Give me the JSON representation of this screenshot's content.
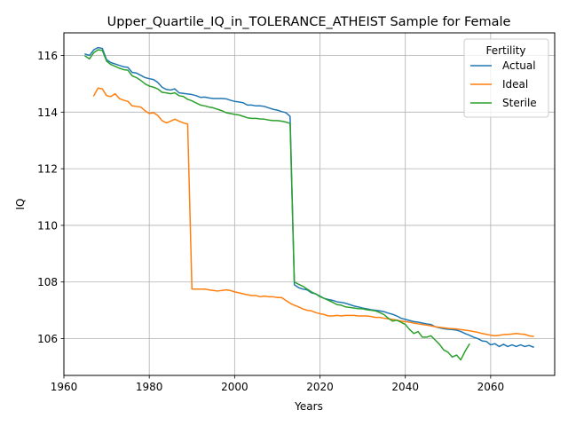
{
  "chart_data": {
    "type": "line",
    "title": "Upper_Quartile_IQ_in_TOLERANCE_ATHEIST Sample for Female",
    "xlabel": "Years",
    "ylabel": "IQ",
    "xlim": [
      1960,
      2075
    ],
    "ylim": [
      104.7,
      116.8
    ],
    "xticks": [
      1960,
      1980,
      2000,
      2020,
      2040,
      2060
    ],
    "yticks": [
      106,
      108,
      110,
      112,
      114,
      116
    ],
    "grid": true,
    "legend": {
      "title": "Fertility",
      "placement": "top-right"
    },
    "series": [
      {
        "name": "Actual",
        "color": "#1f77b4",
        "points": [
          [
            1965,
            116.05
          ],
          [
            1966,
            116.0
          ],
          [
            1967,
            116.2
          ],
          [
            1968,
            116.28
          ],
          [
            1969,
            116.25
          ],
          [
            1970,
            115.85
          ],
          [
            1971,
            115.75
          ],
          [
            1972,
            115.7
          ],
          [
            1973,
            115.65
          ],
          [
            1974,
            115.6
          ],
          [
            1975,
            115.58
          ],
          [
            1976,
            115.4
          ],
          [
            1977,
            115.38
          ],
          [
            1978,
            115.3
          ],
          [
            1979,
            115.22
          ],
          [
            1980,
            115.18
          ],
          [
            1981,
            115.15
          ],
          [
            1982,
            115.05
          ],
          [
            1983,
            114.88
          ],
          [
            1984,
            114.8
          ],
          [
            1985,
            114.78
          ],
          [
            1986,
            114.82
          ],
          [
            1987,
            114.68
          ],
          [
            1988,
            114.66
          ],
          [
            1989,
            114.64
          ],
          [
            1990,
            114.62
          ],
          [
            1991,
            114.58
          ],
          [
            1992,
            114.52
          ],
          [
            1993,
            114.53
          ],
          [
            1994,
            114.5
          ],
          [
            1995,
            114.48
          ],
          [
            1996,
            114.48
          ],
          [
            1997,
            114.48
          ],
          [
            1998,
            114.47
          ],
          [
            1999,
            114.42
          ],
          [
            2000,
            114.38
          ],
          [
            2001,
            114.36
          ],
          [
            2002,
            114.33
          ],
          [
            2003,
            114.25
          ],
          [
            2004,
            114.25
          ],
          [
            2005,
            114.22
          ],
          [
            2006,
            114.22
          ],
          [
            2007,
            114.2
          ],
          [
            2008,
            114.15
          ],
          [
            2009,
            114.1
          ],
          [
            2010,
            114.07
          ],
          [
            2011,
            114.02
          ],
          [
            2012,
            113.98
          ],
          [
            2013,
            113.85
          ],
          [
            2014,
            107.9
          ],
          [
            2015,
            107.8
          ],
          [
            2016,
            107.75
          ],
          [
            2017,
            107.72
          ],
          [
            2018,
            107.62
          ],
          [
            2019,
            107.58
          ],
          [
            2020,
            107.5
          ],
          [
            2021,
            107.42
          ],
          [
            2022,
            107.38
          ],
          [
            2023,
            107.35
          ],
          [
            2024,
            107.3
          ],
          [
            2025,
            107.28
          ],
          [
            2026,
            107.25
          ],
          [
            2027,
            107.2
          ],
          [
            2028,
            107.15
          ],
          [
            2029,
            107.12
          ],
          [
            2030,
            107.08
          ],
          [
            2031,
            107.05
          ],
          [
            2032,
            107.02
          ],
          [
            2033,
            107.0
          ],
          [
            2034,
            106.98
          ],
          [
            2035,
            106.95
          ],
          [
            2036,
            106.9
          ],
          [
            2037,
            106.86
          ],
          [
            2038,
            106.8
          ],
          [
            2039,
            106.72
          ],
          [
            2040,
            106.68
          ],
          [
            2041,
            106.64
          ],
          [
            2042,
            106.6
          ],
          [
            2043,
            106.58
          ],
          [
            2044,
            106.55
          ],
          [
            2045,
            106.52
          ],
          [
            2046,
            106.5
          ],
          [
            2047,
            106.42
          ],
          [
            2048,
            106.38
          ],
          [
            2049,
            106.35
          ],
          [
            2050,
            106.33
          ],
          [
            2051,
            106.32
          ],
          [
            2052,
            106.3
          ],
          [
            2053,
            106.25
          ],
          [
            2054,
            106.18
          ],
          [
            2055,
            106.12
          ],
          [
            2056,
            106.05
          ],
          [
            2057,
            106.0
          ],
          [
            2058,
            105.92
          ],
          [
            2059,
            105.9
          ],
          [
            2060,
            105.78
          ],
          [
            2061,
            105.82
          ],
          [
            2062,
            105.72
          ],
          [
            2063,
            105.8
          ],
          [
            2064,
            105.72
          ],
          [
            2065,
            105.78
          ],
          [
            2066,
            105.72
          ],
          [
            2067,
            105.78
          ],
          [
            2068,
            105.72
          ],
          [
            2069,
            105.76
          ],
          [
            2070,
            105.7
          ]
        ]
      },
      {
        "name": "Ideal",
        "color": "#ff7f0e",
        "points": [
          [
            1967,
            114.58
          ],
          [
            1968,
            114.85
          ],
          [
            1969,
            114.82
          ],
          [
            1970,
            114.58
          ],
          [
            1971,
            114.55
          ],
          [
            1972,
            114.65
          ],
          [
            1973,
            114.48
          ],
          [
            1974,
            114.42
          ],
          [
            1975,
            114.38
          ],
          [
            1976,
            114.22
          ],
          [
            1977,
            114.2
          ],
          [
            1978,
            114.18
          ],
          [
            1979,
            114.05
          ],
          [
            1980,
            113.95
          ],
          [
            1981,
            113.98
          ],
          [
            1982,
            113.88
          ],
          [
            1983,
            113.7
          ],
          [
            1984,
            113.62
          ],
          [
            1985,
            113.68
          ],
          [
            1986,
            113.75
          ],
          [
            1987,
            113.68
          ],
          [
            1988,
            113.62
          ],
          [
            1989,
            113.58
          ],
          [
            1990,
            107.75
          ],
          [
            1991,
            107.75
          ],
          [
            1992,
            107.75
          ],
          [
            1993,
            107.75
          ],
          [
            1994,
            107.72
          ],
          [
            1995,
            107.7
          ],
          [
            1996,
            107.68
          ],
          [
            1997,
            107.7
          ],
          [
            1998,
            107.72
          ],
          [
            1999,
            107.7
          ],
          [
            2000,
            107.65
          ],
          [
            2001,
            107.62
          ],
          [
            2002,
            107.58
          ],
          [
            2003,
            107.55
          ],
          [
            2004,
            107.52
          ],
          [
            2005,
            107.52
          ],
          [
            2006,
            107.48
          ],
          [
            2007,
            107.5
          ],
          [
            2008,
            107.48
          ],
          [
            2009,
            107.48
          ],
          [
            2010,
            107.45
          ],
          [
            2011,
            107.45
          ],
          [
            2012,
            107.35
          ],
          [
            2013,
            107.25
          ],
          [
            2014,
            107.18
          ],
          [
            2015,
            107.12
          ],
          [
            2016,
            107.05
          ],
          [
            2017,
            107.0
          ],
          [
            2018,
            106.98
          ],
          [
            2019,
            106.92
          ],
          [
            2020,
            106.88
          ],
          [
            2021,
            106.85
          ],
          [
            2022,
            106.8
          ],
          [
            2023,
            106.8
          ],
          [
            2024,
            106.82
          ],
          [
            2025,
            106.8
          ],
          [
            2026,
            106.82
          ],
          [
            2027,
            106.82
          ],
          [
            2028,
            106.82
          ],
          [
            2029,
            106.8
          ],
          [
            2030,
            106.8
          ],
          [
            2031,
            106.8
          ],
          [
            2032,
            106.78
          ],
          [
            2033,
            106.75
          ],
          [
            2034,
            106.75
          ],
          [
            2035,
            106.72
          ],
          [
            2036,
            106.7
          ],
          [
            2037,
            106.68
          ],
          [
            2038,
            106.65
          ],
          [
            2039,
            106.62
          ],
          [
            2040,
            106.6
          ],
          [
            2041,
            106.58
          ],
          [
            2042,
            106.55
          ],
          [
            2043,
            106.52
          ],
          [
            2044,
            106.5
          ],
          [
            2045,
            106.48
          ],
          [
            2046,
            106.45
          ],
          [
            2047,
            106.42
          ],
          [
            2048,
            106.4
          ],
          [
            2049,
            106.38
          ],
          [
            2050,
            106.36
          ],
          [
            2051,
            106.35
          ],
          [
            2052,
            106.34
          ],
          [
            2053,
            106.32
          ],
          [
            2054,
            106.3
          ],
          [
            2055,
            106.28
          ],
          [
            2056,
            106.25
          ],
          [
            2057,
            106.22
          ],
          [
            2058,
            106.18
          ],
          [
            2059,
            106.15
          ],
          [
            2060,
            106.12
          ],
          [
            2061,
            106.1
          ],
          [
            2062,
            106.12
          ],
          [
            2063,
            106.14
          ],
          [
            2064,
            106.15
          ],
          [
            2065,
            106.16
          ],
          [
            2066,
            106.18
          ],
          [
            2067,
            106.16
          ],
          [
            2068,
            106.15
          ],
          [
            2069,
            106.1
          ],
          [
            2070,
            106.08
          ]
        ]
      },
      {
        "name": "Sterile",
        "color": "#2ca02c",
        "points": [
          [
            1965,
            115.98
          ],
          [
            1966,
            115.88
          ],
          [
            1967,
            116.1
          ],
          [
            1968,
            116.2
          ],
          [
            1969,
            116.18
          ],
          [
            1970,
            115.8
          ],
          [
            1971,
            115.68
          ],
          [
            1972,
            115.62
          ],
          [
            1973,
            115.55
          ],
          [
            1974,
            115.5
          ],
          [
            1975,
            115.48
          ],
          [
            1976,
            115.28
          ],
          [
            1977,
            115.22
          ],
          [
            1978,
            115.12
          ],
          [
            1979,
            115.0
          ],
          [
            1980,
            114.92
          ],
          [
            1981,
            114.88
          ],
          [
            1982,
            114.82
          ],
          [
            1983,
            114.7
          ],
          [
            1984,
            114.68
          ],
          [
            1985,
            114.65
          ],
          [
            1986,
            114.68
          ],
          [
            1987,
            114.58
          ],
          [
            1988,
            114.55
          ],
          [
            1989,
            114.45
          ],
          [
            1990,
            114.4
          ],
          [
            1991,
            114.32
          ],
          [
            1992,
            114.25
          ],
          [
            1993,
            114.22
          ],
          [
            1994,
            114.18
          ],
          [
            1995,
            114.15
          ],
          [
            1996,
            114.1
          ],
          [
            1997,
            114.05
          ],
          [
            1998,
            113.98
          ],
          [
            1999,
            113.95
          ],
          [
            2000,
            113.92
          ],
          [
            2001,
            113.9
          ],
          [
            2002,
            113.85
          ],
          [
            2003,
            113.8
          ],
          [
            2004,
            113.78
          ],
          [
            2005,
            113.78
          ],
          [
            2006,
            113.76
          ],
          [
            2007,
            113.75
          ],
          [
            2008,
            113.72
          ],
          [
            2009,
            113.7
          ],
          [
            2010,
            113.7
          ],
          [
            2011,
            113.68
          ],
          [
            2012,
            113.65
          ],
          [
            2013,
            113.6
          ],
          [
            2014,
            108.0
          ],
          [
            2015,
            107.92
          ],
          [
            2016,
            107.85
          ],
          [
            2017,
            107.75
          ],
          [
            2018,
            107.65
          ],
          [
            2019,
            107.58
          ],
          [
            2020,
            107.48
          ],
          [
            2021,
            107.42
          ],
          [
            2022,
            107.35
          ],
          [
            2023,
            107.28
          ],
          [
            2024,
            107.2
          ],
          [
            2025,
            107.18
          ],
          [
            2026,
            107.12
          ],
          [
            2027,
            107.1
          ],
          [
            2028,
            107.08
          ],
          [
            2029,
            107.06
          ],
          [
            2030,
            107.05
          ],
          [
            2031,
            107.02
          ],
          [
            2032,
            107.0
          ],
          [
            2033,
            106.98
          ],
          [
            2034,
            106.92
          ],
          [
            2035,
            106.85
          ],
          [
            2036,
            106.72
          ],
          [
            2037,
            106.62
          ],
          [
            2038,
            106.65
          ],
          [
            2039,
            106.58
          ],
          [
            2040,
            106.5
          ],
          [
            2041,
            106.32
          ],
          [
            2042,
            106.18
          ],
          [
            2043,
            106.25
          ],
          [
            2044,
            106.05
          ],
          [
            2045,
            106.05
          ],
          [
            2046,
            106.1
          ],
          [
            2047,
            105.95
          ],
          [
            2048,
            105.8
          ],
          [
            2049,
            105.6
          ],
          [
            2050,
            105.52
          ],
          [
            2051,
            105.35
          ],
          [
            2052,
            105.42
          ],
          [
            2053,
            105.25
          ],
          [
            2054,
            105.55
          ],
          [
            2055,
            105.8
          ]
        ]
      }
    ]
  }
}
